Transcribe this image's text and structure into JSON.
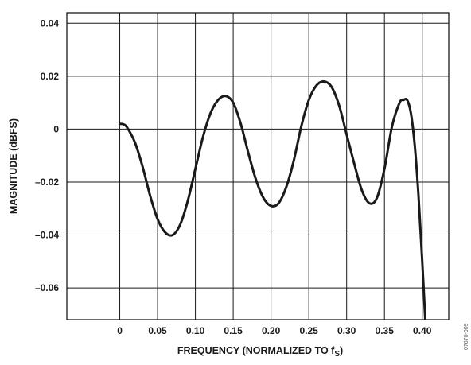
{
  "chart_data": {
    "type": "line",
    "xlabel": "FREQUENCY (NORMALIZED TO f",
    "xlabel_sub": "S",
    "xlabel_close": ")",
    "ylabel": "MAGNITUDE (dBFS)",
    "xlim": [
      -0.07,
      0.435
    ],
    "ylim": [
      -0.072,
      0.044
    ],
    "x_ticks": [
      0,
      0.05,
      0.1,
      0.15,
      0.2,
      0.25,
      0.3,
      0.35,
      0.4
    ],
    "x_tick_labels": [
      "0",
      "0.05",
      "0.10",
      "0.15",
      "0.20",
      "0.25",
      "0.30",
      "0.35",
      "0.40"
    ],
    "y_ticks": [
      0.04,
      0.02,
      0,
      -0.02,
      -0.04,
      -0.06
    ],
    "y_tick_labels": [
      "0.04",
      "0.02",
      "0",
      "–0.02",
      "–0.04",
      "–0.06"
    ],
    "grid": true,
    "series": [
      {
        "color": "#1a1a1a",
        "x": [
          0,
          0.005,
          0.01,
          0.02,
          0.03,
          0.04,
          0.05,
          0.06,
          0.07,
          0.08,
          0.09,
          0.1,
          0.11,
          0.12,
          0.13,
          0.14,
          0.15,
          0.16,
          0.17,
          0.18,
          0.19,
          0.2,
          0.21,
          0.22,
          0.23,
          0.24,
          0.25,
          0.26,
          0.27,
          0.28,
          0.29,
          0.3,
          0.31,
          0.32,
          0.33,
          0.34,
          0.35,
          0.36,
          0.37,
          0.375,
          0.38,
          0.385,
          0.39,
          0.395,
          0.4,
          0.405
        ],
        "y": [
          0.002,
          0.0018,
          0.0005,
          -0.005,
          -0.014,
          -0.025,
          -0.034,
          -0.039,
          -0.04,
          -0.036,
          -0.027,
          -0.015,
          -0.003,
          0.006,
          0.011,
          0.0125,
          0.01,
          0.002,
          -0.009,
          -0.019,
          -0.026,
          -0.029,
          -0.028,
          -0.022,
          -0.012,
          0.001,
          0.011,
          0.0165,
          0.018,
          0.016,
          0.009,
          -0.002,
          -0.013,
          -0.023,
          -0.028,
          -0.026,
          -0.015,
          0.001,
          0.01,
          0.011,
          0.011,
          0.006,
          -0.006,
          -0.025,
          -0.05,
          -0.078
        ]
      }
    ]
  },
  "figure_id": "07670-009"
}
